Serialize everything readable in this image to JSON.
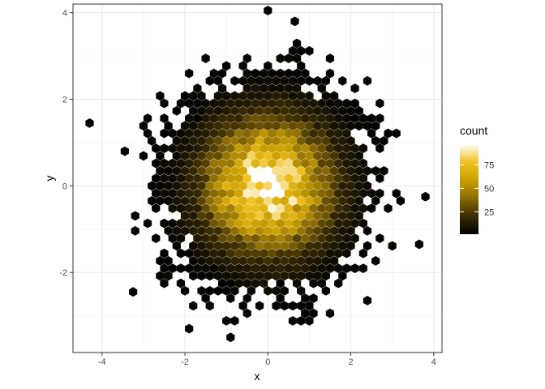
{
  "chart_data": {
    "type": "hexbin",
    "xlabel": "x",
    "ylabel": "y",
    "xlim": [
      -4.7,
      4.2
    ],
    "ylim": [
      -3.85,
      4.2
    ],
    "x_ticks": [
      -4,
      -2,
      0,
      2,
      4
    ],
    "y_ticks": [
      -2,
      0,
      2,
      4
    ],
    "x_tick_labels": [
      "-4",
      "-2",
      "0",
      "2",
      "4"
    ],
    "y_tick_labels": [
      "-2",
      "0",
      "2",
      "4"
    ],
    "grid": true,
    "colorbar": {
      "title": "count",
      "range": [
        1,
        97
      ],
      "ticks": [
        25,
        50,
        75
      ],
      "tick_labels": [
        "25",
        "50",
        "75"
      ],
      "colors": [
        "#000000",
        "#3a2c00",
        "#8a6a05",
        "#c9a000",
        "#f0c020",
        "#ffffff"
      ],
      "placement": "right"
    },
    "distribution": {
      "description_free": "",
      "center_x": 0.0,
      "center_y": 0.0,
      "spread": 1.0,
      "peak_count": 97
    },
    "outlier_points": [
      {
        "x": -4.3,
        "y": 1.45
      },
      {
        "x": 3.8,
        "y": -0.25
      },
      {
        "x": 3.65,
        "y": -1.35
      },
      {
        "x": 0.0,
        "y": 4.05
      },
      {
        "x": 0.65,
        "y": 3.8
      },
      {
        "x": -0.9,
        "y": -3.5
      },
      {
        "x": -1.9,
        "y": -3.3
      },
      {
        "x": -3.25,
        "y": -2.45
      },
      {
        "x": -3.45,
        "y": 0.8
      },
      {
        "x": 2.4,
        "y": -2.65
      }
    ]
  }
}
